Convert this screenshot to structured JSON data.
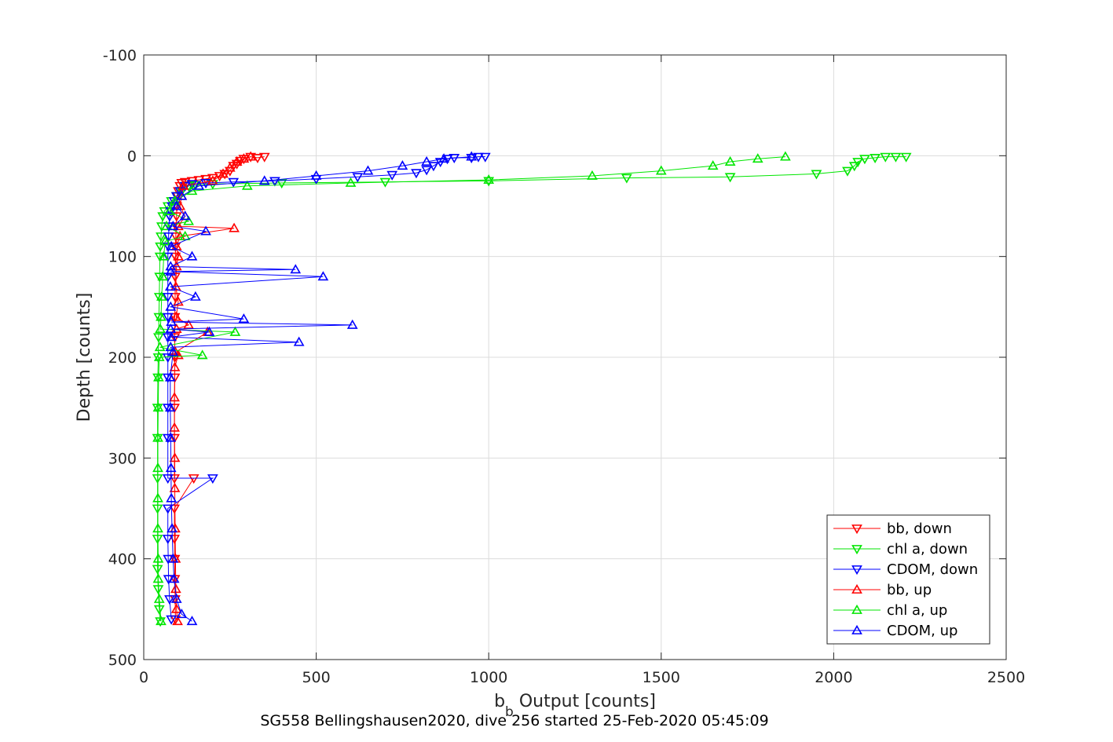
{
  "caption": "SG558 Bellingshausen2020, dive 256 started 25-Feb-2020 05:45:09",
  "chart_data": {
    "type": "line",
    "xlabel_main": "b",
    "xlabel_sub": "b",
    "xlabel_rest": " Output [counts]",
    "ylabel": "Depth [counts]",
    "xlim": [
      0,
      2500
    ],
    "ylim": [
      -100,
      500
    ],
    "y_reversed": true,
    "grid": true,
    "legend_position": "bottom-right",
    "x_ticks": [
      0,
      500,
      1000,
      1500,
      2000,
      2500
    ],
    "y_ticks": [
      -100,
      0,
      100,
      200,
      300,
      400,
      500
    ],
    "series": [
      {
        "name": "bb, down",
        "color": "#ff0000",
        "marker": "triangle-down",
        "points": [
          [
            350,
            1
          ],
          [
            330,
            2
          ],
          [
            310,
            1
          ],
          [
            290,
            3
          ],
          [
            280,
            5
          ],
          [
            270,
            8
          ],
          [
            260,
            10
          ],
          [
            250,
            15
          ],
          [
            235,
            18
          ],
          [
            220,
            20
          ],
          [
            200,
            22
          ],
          [
            180,
            23
          ],
          [
            160,
            24
          ],
          [
            140,
            25
          ],
          [
            120,
            26
          ],
          [
            110,
            27
          ],
          [
            105,
            30
          ],
          [
            100,
            35
          ],
          [
            98,
            40
          ],
          [
            96,
            50
          ],
          [
            95,
            60
          ],
          [
            94,
            70
          ],
          [
            93,
            80
          ],
          [
            92,
            90
          ],
          [
            92,
            100
          ],
          [
            91,
            120
          ],
          [
            91,
            140
          ],
          [
            90,
            160
          ],
          [
            90,
            180
          ],
          [
            90,
            200
          ],
          [
            90,
            220
          ],
          [
            89,
            250
          ],
          [
            89,
            280
          ],
          [
            89,
            320
          ],
          [
            145,
            320
          ],
          [
            89,
            350
          ],
          [
            89,
            380
          ],
          [
            90,
            400
          ],
          [
            90,
            420
          ],
          [
            91,
            440
          ],
          [
            92,
            460
          ]
        ]
      },
      {
        "name": "chl a, down",
        "color": "#00e600",
        "marker": "triangle-down",
        "points": [
          [
            2210,
            1
          ],
          [
            2180,
            1
          ],
          [
            2150,
            1
          ],
          [
            2120,
            2
          ],
          [
            2090,
            3
          ],
          [
            2070,
            6
          ],
          [
            2060,
            10
          ],
          [
            2040,
            15
          ],
          [
            1950,
            18
          ],
          [
            1700,
            21
          ],
          [
            1400,
            22
          ],
          [
            1000,
            25
          ],
          [
            700,
            26
          ],
          [
            400,
            27
          ],
          [
            200,
            28
          ],
          [
            150,
            29
          ],
          [
            130,
            30
          ],
          [
            110,
            35
          ],
          [
            95,
            40
          ],
          [
            80,
            45
          ],
          [
            70,
            50
          ],
          [
            60,
            55
          ],
          [
            55,
            60
          ],
          [
            52,
            70
          ],
          [
            50,
            80
          ],
          [
            48,
            90
          ],
          [
            47,
            100
          ],
          [
            46,
            120
          ],
          [
            45,
            140
          ],
          [
            44,
            160
          ],
          [
            43,
            180
          ],
          [
            42,
            200
          ],
          [
            41,
            220
          ],
          [
            40,
            250
          ],
          [
            40,
            280
          ],
          [
            40,
            320
          ],
          [
            40,
            350
          ],
          [
            40,
            380
          ],
          [
            40,
            410
          ],
          [
            42,
            430
          ],
          [
            45,
            450
          ],
          [
            48,
            462
          ]
        ]
      },
      {
        "name": "CDOM, down",
        "color": "#0000ff",
        "marker": "triangle-down",
        "points": [
          [
            990,
            1
          ],
          [
            970,
            1
          ],
          [
            950,
            2
          ],
          [
            900,
            2
          ],
          [
            880,
            3
          ],
          [
            860,
            6
          ],
          [
            840,
            10
          ],
          [
            820,
            14
          ],
          [
            790,
            17
          ],
          [
            720,
            19
          ],
          [
            620,
            21
          ],
          [
            500,
            23
          ],
          [
            380,
            25
          ],
          [
            260,
            26
          ],
          [
            180,
            27
          ],
          [
            140,
            28
          ],
          [
            120,
            30
          ],
          [
            105,
            35
          ],
          [
            95,
            40
          ],
          [
            88,
            45
          ],
          [
            82,
            50
          ],
          [
            78,
            55
          ],
          [
            75,
            60
          ],
          [
            73,
            70
          ],
          [
            72,
            80
          ],
          [
            71,
            90
          ],
          [
            70,
            100
          ],
          [
            70,
            120
          ],
          [
            70,
            140
          ],
          [
            70,
            160
          ],
          [
            70,
            180
          ],
          [
            70,
            200
          ],
          [
            70,
            220
          ],
          [
            70,
            250
          ],
          [
            70,
            280
          ],
          [
            70,
            320
          ],
          [
            200,
            320
          ],
          [
            70,
            350
          ],
          [
            70,
            380
          ],
          [
            71,
            400
          ],
          [
            72,
            420
          ],
          [
            75,
            440
          ],
          [
            80,
            460
          ]
        ]
      },
      {
        "name": "bb, up",
        "color": "#ff0000",
        "marker": "triangle-up",
        "points": [
          [
            98,
            462
          ],
          [
            95,
            450
          ],
          [
            93,
            430
          ],
          [
            92,
            400
          ],
          [
            91,
            370
          ],
          [
            90,
            330
          ],
          [
            90,
            300
          ],
          [
            89,
            270
          ],
          [
            89,
            240
          ],
          [
            90,
            210
          ],
          [
            100,
            198
          ],
          [
            92,
            195
          ],
          [
            185,
            175
          ],
          [
            95,
            172
          ],
          [
            130,
            168
          ],
          [
            94,
            160
          ],
          [
            100,
            145
          ],
          [
            93,
            130
          ],
          [
            95,
            110
          ],
          [
            100,
            100
          ],
          [
            95,
            90
          ],
          [
            105,
            80
          ],
          [
            262,
            72
          ],
          [
            100,
            70
          ],
          [
            120,
            60
          ],
          [
            105,
            50
          ],
          [
            110,
            40
          ],
          [
            115,
            30
          ],
          [
            200,
            25
          ],
          [
            230,
            18
          ],
          [
            250,
            12
          ],
          [
            270,
            6
          ],
          [
            290,
            3
          ],
          [
            310,
            1
          ]
        ]
      },
      {
        "name": "chl a, up",
        "color": "#00e600",
        "marker": "triangle-up",
        "points": [
          [
            50,
            462
          ],
          [
            45,
            440
          ],
          [
            42,
            420
          ],
          [
            42,
            400
          ],
          [
            41,
            370
          ],
          [
            41,
            340
          ],
          [
            41,
            310
          ],
          [
            41,
            280
          ],
          [
            42,
            250
          ],
          [
            43,
            220
          ],
          [
            45,
            200
          ],
          [
            170,
            198
          ],
          [
            47,
            190
          ],
          [
            265,
            175
          ],
          [
            48,
            172
          ],
          [
            50,
            160
          ],
          [
            52,
            140
          ],
          [
            55,
            120
          ],
          [
            58,
            100
          ],
          [
            62,
            85
          ],
          [
            120,
            80
          ],
          [
            66,
            70
          ],
          [
            130,
            65
          ],
          [
            75,
            55
          ],
          [
            90,
            45
          ],
          [
            140,
            35
          ],
          [
            300,
            30
          ],
          [
            600,
            27
          ],
          [
            1000,
            24
          ],
          [
            1300,
            20
          ],
          [
            1500,
            15
          ],
          [
            1650,
            10
          ],
          [
            1700,
            6
          ],
          [
            1780,
            3
          ],
          [
            1860,
            1
          ]
        ]
      },
      {
        "name": "CDOM, up",
        "color": "#0000ff",
        "marker": "triangle-up",
        "points": [
          [
            140,
            462
          ],
          [
            110,
            455
          ],
          [
            95,
            440
          ],
          [
            88,
            420
          ],
          [
            85,
            400
          ],
          [
            82,
            370
          ],
          [
            80,
            340
          ],
          [
            79,
            310
          ],
          [
            78,
            280
          ],
          [
            77,
            250
          ],
          [
            77,
            220
          ],
          [
            85,
            195
          ],
          [
            78,
            190
          ],
          [
            450,
            185
          ],
          [
            80,
            180
          ],
          [
            190,
            175
          ],
          [
            78,
            172
          ],
          [
            605,
            168
          ],
          [
            80,
            165
          ],
          [
            290,
            162
          ],
          [
            78,
            150
          ],
          [
            150,
            140
          ],
          [
            77,
            130
          ],
          [
            520,
            120
          ],
          [
            78,
            115
          ],
          [
            440,
            113
          ],
          [
            78,
            110
          ],
          [
            140,
            100
          ],
          [
            80,
            90
          ],
          [
            180,
            75
          ],
          [
            85,
            70
          ],
          [
            120,
            60
          ],
          [
            95,
            50
          ],
          [
            110,
            40
          ],
          [
            160,
            30
          ],
          [
            350,
            25
          ],
          [
            500,
            20
          ],
          [
            650,
            15
          ],
          [
            750,
            10
          ],
          [
            820,
            6
          ],
          [
            870,
            3
          ],
          [
            950,
            1
          ]
        ]
      }
    ]
  }
}
